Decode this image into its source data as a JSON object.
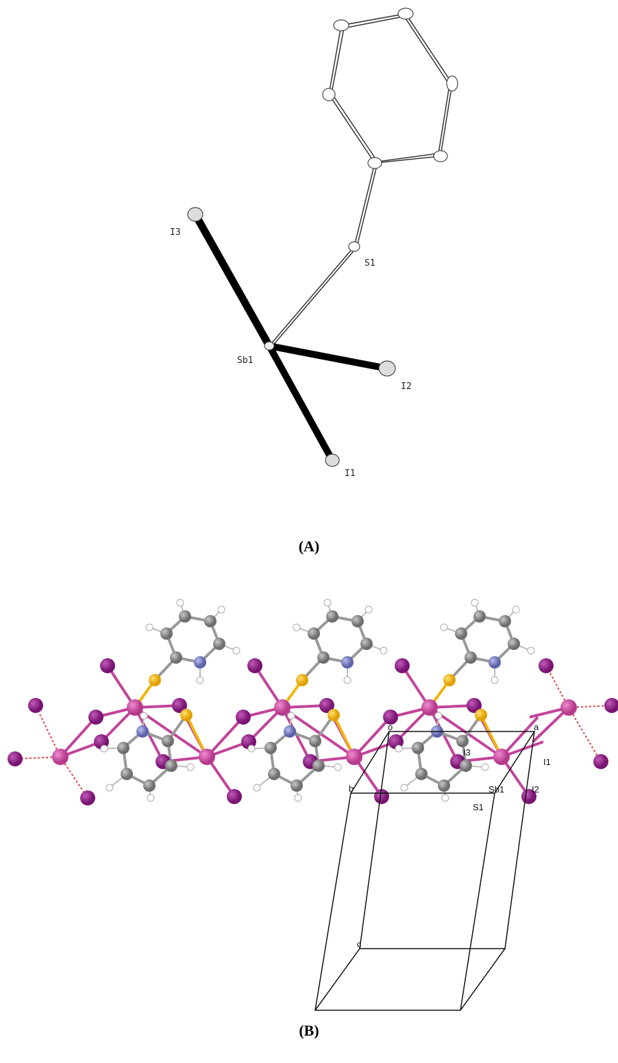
{
  "panel_a": {
    "caption": "(A)",
    "atom_labels": [
      "I3",
      "S1",
      "Sb1",
      "I2",
      "I1"
    ]
  },
  "panel_b": {
    "caption": "(B)",
    "atom_labels": [
      "I3",
      "I1",
      "Sb1",
      "S1",
      "I2"
    ],
    "cell_axes": [
      "o",
      "a",
      "b",
      "c"
    ]
  }
}
